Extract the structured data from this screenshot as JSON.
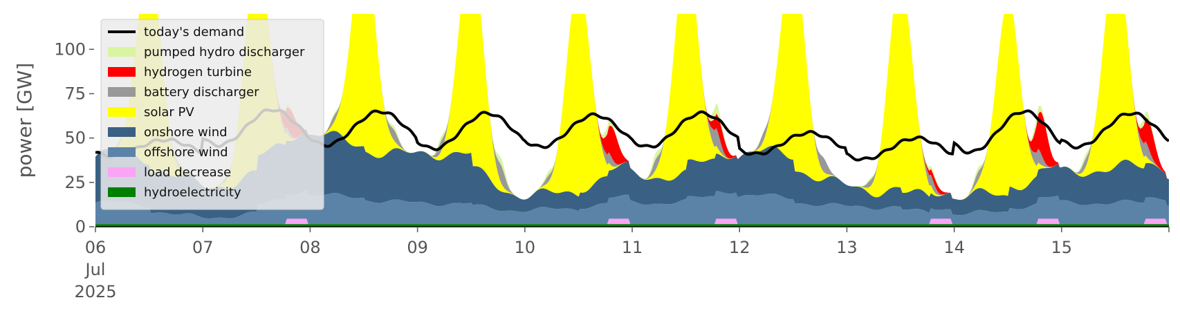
{
  "chart_data": {
    "type": "area",
    "stacked": true,
    "ylabel": "power [GW]",
    "ylim": [
      0,
      120
    ],
    "yticks": [
      0,
      25,
      50,
      75,
      100
    ],
    "ytick_labels": [
      "0",
      "25",
      "50",
      "75",
      "100"
    ],
    "xlim_days": [
      0,
      10
    ],
    "xticks": [
      {
        "day": 0,
        "label": "06"
      },
      {
        "day": 1,
        "label": "07"
      },
      {
        "day": 2,
        "label": "08"
      },
      {
        "day": 3,
        "label": "09"
      },
      {
        "day": 4,
        "label": "10"
      },
      {
        "day": 5,
        "label": "11"
      },
      {
        "day": 6,
        "label": "12"
      },
      {
        "day": 7,
        "label": "13"
      },
      {
        "day": 8,
        "label": "14"
      },
      {
        "day": 9,
        "label": "15"
      }
    ],
    "xtick_sublabels": [
      "Jul",
      "2025"
    ],
    "grid": false,
    "legend_position": "top-left",
    "legend": [
      {
        "name": "today's demand",
        "color": "#000000",
        "kind": "line"
      },
      {
        "name": "pumped hydro discharger",
        "color": "#d9f5a0",
        "kind": "patch"
      },
      {
        "name": "hydrogen turbine",
        "color": "#ff0000",
        "kind": "patch"
      },
      {
        "name": "battery discharger",
        "color": "#999999",
        "kind": "patch"
      },
      {
        "name": "solar PV",
        "color": "#ffff00",
        "kind": "patch"
      },
      {
        "name": "onshore wind",
        "color": "#3a6184",
        "kind": "patch"
      },
      {
        "name": "offshore wind",
        "color": "#5b83a8",
        "kind": "patch"
      },
      {
        "name": "load decrease",
        "color": "#f9a4f5",
        "kind": "patch"
      },
      {
        "name": "hydroelectricity",
        "color": "#008000",
        "kind": "patch"
      }
    ],
    "stack_order_bottom_to_top": [
      "hydroelectricity",
      "load decrease",
      "offshore wind",
      "onshore wind",
      "solar PV",
      "battery discharger",
      "hydrogen turbine",
      "pumped hydro discharger"
    ],
    "days": [
      {
        "label": "06",
        "hydro": 1.5,
        "load_decrease": 0,
        "offshore": 12,
        "onshore": 26,
        "solar_peak": 118,
        "battery": 2,
        "hydrogen": 0,
        "pumped": 2,
        "demand_peak": 49,
        "demand_trough": 40
      },
      {
        "label": "07",
        "hydro": 1.5,
        "load_decrease": 3,
        "offshore": 4,
        "onshore": 20,
        "solar_peak": 118,
        "battery": 3,
        "hydrogen": 14,
        "pumped": 2,
        "demand_peak": 66,
        "demand_trough": 46
      },
      {
        "label": "08",
        "hydro": 1.5,
        "load_decrease": 0,
        "offshore": 16,
        "onshore": 32,
        "solar_peak": 120,
        "battery": 6,
        "hydrogen": 0,
        "pumped": 2,
        "demand_peak": 65,
        "demand_trough": 46
      },
      {
        "label": "09",
        "hydro": 1.5,
        "load_decrease": 0,
        "offshore": 12,
        "onshore": 28,
        "solar_peak": 120,
        "battery": 10,
        "hydrogen": 0,
        "pumped": 4,
        "demand_peak": 64,
        "demand_trough": 44
      },
      {
        "label": "10",
        "hydro": 1.5,
        "load_decrease": 3,
        "offshore": 8,
        "onshore": 10,
        "solar_peak": 120,
        "battery": 6,
        "hydrogen": 18,
        "pumped": 4,
        "demand_peak": 63,
        "demand_trough": 45
      },
      {
        "label": "11",
        "hydro": 1.5,
        "load_decrease": 3,
        "offshore": 12,
        "onshore": 14,
        "solar_peak": 120,
        "battery": 10,
        "hydrogen": 10,
        "pumped": 6,
        "demand_peak": 64,
        "demand_trough": 45
      },
      {
        "label": "12",
        "hydro": 1.5,
        "load_decrease": 0,
        "offshore": 16,
        "onshore": 24,
        "solar_peak": 120,
        "battery": 8,
        "hydrogen": 0,
        "pumped": 0,
        "demand_peak": 53,
        "demand_trough": 41
      },
      {
        "label": "13",
        "hydro": 1.5,
        "load_decrease": 3,
        "offshore": 10,
        "onshore": 12,
        "solar_peak": 120,
        "battery": 6,
        "hydrogen": 4,
        "pumped": 2,
        "demand_peak": 50,
        "demand_trough": 38
      },
      {
        "label": "14",
        "hydro": 1.5,
        "load_decrease": 3,
        "offshore": 6,
        "onshore": 8,
        "solar_peak": 108,
        "battery": 8,
        "hydrogen": 24,
        "pumped": 4,
        "demand_peak": 65,
        "demand_trough": 42
      },
      {
        "label": "15",
        "hydro": 1.5,
        "load_decrease": 3,
        "offshore": 12,
        "onshore": 18,
        "solar_peak": 120,
        "battery": 8,
        "hydrogen": 16,
        "pumped": 4,
        "demand_peak": 64,
        "demand_trough": 45
      }
    ]
  }
}
